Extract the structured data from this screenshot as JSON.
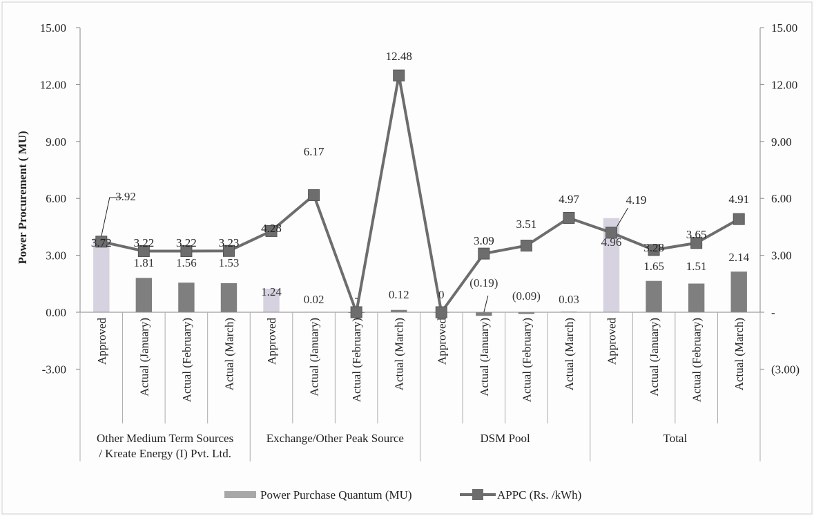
{
  "chart_data": {
    "type": "bar",
    "ylabel": "Power Procurement ( MU)",
    "ylim": [
      -3,
      15
    ],
    "ylim_right": [
      -3,
      15
    ],
    "yticks_left": [
      "15.00",
      "12.00",
      "9.00",
      "6.00",
      "3.00",
      "0.00",
      "-3.00"
    ],
    "yticks_right": [
      "15.00",
      "12.00",
      "9.00",
      "6.00",
      "3.00",
      "-",
      "(3.00)"
    ],
    "grid": false,
    "legend_position": "bottom",
    "groups": [
      {
        "label_lines": [
          "Other Medium Term Sources",
          "/ Kreate Energy (I) Pvt. Ltd."
        ],
        "size": 4
      },
      {
        "label_lines": [
          "Exchange/Other Peak Source"
        ],
        "size": 4
      },
      {
        "label_lines": [
          "DSM Pool"
        ],
        "size": 4
      },
      {
        "label_lines": [
          "Total"
        ],
        "size": 4
      }
    ],
    "categories": [
      "Approved",
      "Actual (January)",
      "Actual (February)",
      "Actual (March)",
      "Approved",
      "Actual (January)",
      "Actual (February)",
      "Actual (March)",
      "Approved",
      "Actual (January)",
      "Actual (February)",
      "Actual (March)",
      "Approved",
      "Actual (January)",
      "Actual (February)",
      "Actual (March)"
    ],
    "series": [
      {
        "name": "Power Purchase Quantum (MU)",
        "kind": "bar",
        "axis": "left",
        "values": [
          3.92,
          1.81,
          1.56,
          1.53,
          1.24,
          0.02,
          0.0,
          0.12,
          0.0,
          -0.19,
          -0.09,
          0.03,
          4.96,
          1.65,
          1.51,
          2.14
        ],
        "labels": [
          "3.92",
          "1.81",
          "1.56",
          "1.53",
          "1.24",
          "0.02",
          "-",
          "0.12",
          "0",
          "(0.19)",
          "(0.09)",
          "0.03",
          "4.96",
          "1.65",
          "1.51",
          "2.14"
        ],
        "colors": [
          "#d6d2df",
          "#7f7f7f",
          "#7f7f7f",
          "#7f7f7f",
          "#d6d2df",
          "#7f7f7f",
          "#7f7f7f",
          "#7f7f7f",
          "#d6d2df",
          "#7f7f7f",
          "#7f7f7f",
          "#7f7f7f",
          "#d6d2df",
          "#7f7f7f",
          "#7f7f7f",
          "#7f7f7f"
        ]
      },
      {
        "name": "APPC (Rs. /kWh)",
        "kind": "line",
        "axis": "right",
        "color": "#6d6d6d",
        "values": [
          3.72,
          3.22,
          3.22,
          3.23,
          4.28,
          6.17,
          0.0,
          12.48,
          0.0,
          3.09,
          3.51,
          4.97,
          4.19,
          3.28,
          3.65,
          4.91
        ],
        "labels": [
          "3.72",
          "3.22",
          "3.22",
          "3.23",
          "4.28",
          "6.17",
          "",
          "12.48",
          "",
          "3.09",
          "3.51",
          "4.97",
          "4.19",
          "3.28",
          "3.65",
          "4.91"
        ]
      }
    ]
  }
}
